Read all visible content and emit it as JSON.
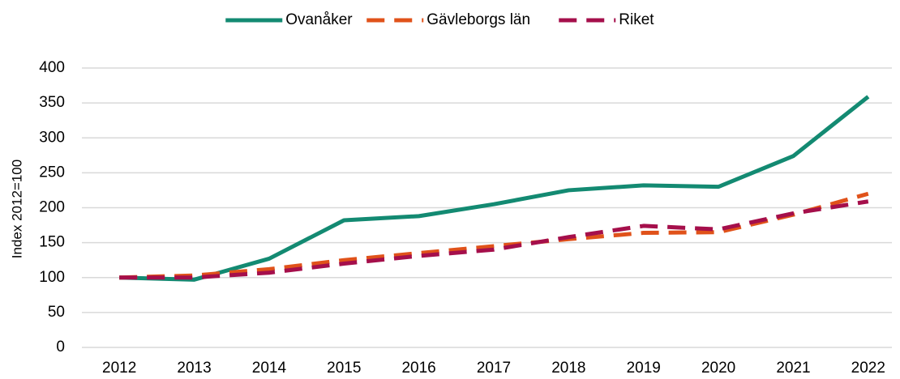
{
  "chart_data": {
    "type": "line",
    "y_label": "Index 2012=100",
    "categories": [
      "2012",
      "2013",
      "2014",
      "2015",
      "2016",
      "2017",
      "2018",
      "2019",
      "2020",
      "2021",
      "2022"
    ],
    "series": [
      {
        "name": "Ovanåker",
        "color": "#138a72",
        "style": "solid",
        "values": [
          100,
          97,
          127,
          182,
          188,
          205,
          225,
          232,
          230,
          274,
          359
        ]
      },
      {
        "name": "Gävleborgs län",
        "color": "#e0521a",
        "style": "dashed",
        "values": [
          100,
          103,
          112,
          125,
          135,
          145,
          155,
          164,
          165,
          190,
          220
        ]
      },
      {
        "name": "Riket",
        "color": "#a50f4b",
        "style": "dashed",
        "values": [
          100,
          100,
          107,
          120,
          131,
          140,
          158,
          174,
          169,
          192,
          209
        ]
      }
    ],
    "ylim": [
      0,
      400
    ],
    "yticks": [
      0,
      50,
      100,
      150,
      200,
      250,
      300,
      350,
      400
    ],
    "grid": true,
    "legend": "top"
  }
}
